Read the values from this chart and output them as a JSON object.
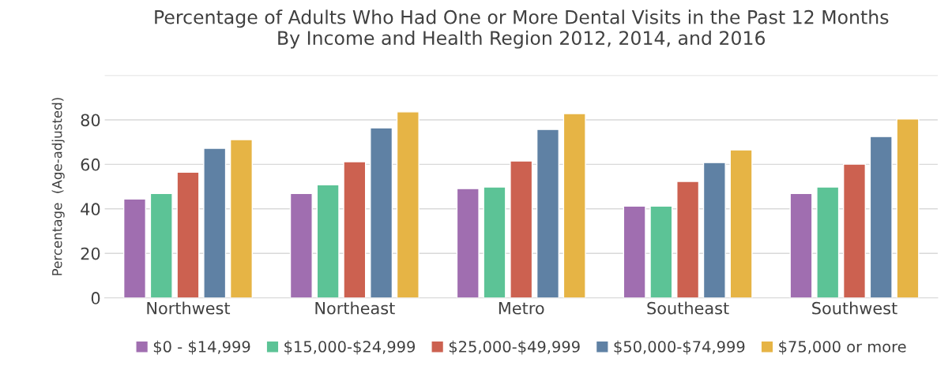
{
  "chart_data": {
    "type": "bar",
    "title": "Percentage of Adults Who Had One or More Dental Visits in the Past 12 Months\nBy Income and Health Region 2012, 2014, and 2016",
    "ylabel": "Percentage  (Age-adjusted)",
    "categories": [
      "Northwest",
      "Northeast",
      "Metro",
      "Southeast",
      "Southwest"
    ],
    "series": [
      {
        "name": "$0 - $14,999",
        "color": "#a06eb0",
        "values": [
          44.4,
          46.9,
          49.1,
          41.2,
          46.9
        ]
      },
      {
        "name": "$15,000-$24,999",
        "color": "#5cc396",
        "values": [
          46.9,
          50.8,
          49.8,
          41.2,
          49.8
        ]
      },
      {
        "name": "$25,000-$49,999",
        "color": "#cc6150",
        "values": [
          56.5,
          61.2,
          61.5,
          52.3,
          60.1
        ]
      },
      {
        "name": "$50,000-$74,999",
        "color": "#5f81a4",
        "values": [
          67.2,
          76.4,
          75.7,
          60.8,
          72.5
        ]
      },
      {
        "name": "$75,000 or more",
        "color": "#e6b445",
        "values": [
          71.1,
          83.6,
          82.8,
          66.5,
          80.4
        ]
      }
    ],
    "ylim": [
      0,
      100
    ],
    "yticks": [
      0,
      20,
      40,
      60,
      80,
      {
        "value": 100,
        "label": null
      }
    ],
    "grid": "y",
    "legend": "bottom"
  }
}
